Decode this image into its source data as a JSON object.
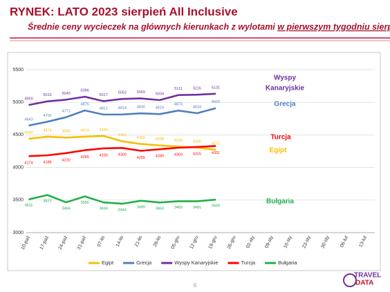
{
  "title": "RYNEK: LATO 2023 sierpień All Inclusive",
  "subtitle": "Średnie ceny wycieczek na głównych kierunkach z wylotami ",
  "subtitle_underlined": "w pierwszym tygodniu sierpnia",
  "page_number": "6",
  "logo": [
    "TRAVEL",
    "DATA"
  ],
  "chart_data": {
    "type": "line",
    "categories": [
      "10-paź",
      "17-paź",
      "24-paź",
      "31-paź",
      "07-lis",
      "14-lis",
      "21-lis",
      "28-lis",
      "05-gru",
      "12-gru",
      "19-gru",
      "26-gru",
      "02-sty",
      "09-sty",
      "16-sty",
      "23-sty",
      "30-sty",
      "06-lut",
      "13-lut"
    ],
    "series": [
      {
        "name": "Egipt",
        "color": "#f5c000",
        "values": [
          4440,
          4474,
          4459,
          4474,
          4484,
          4401,
          4360,
          4338,
          4320,
          4305,
          4271,
          null,
          null,
          null,
          null,
          null,
          null,
          null,
          null
        ]
      },
      {
        "name": "Grecja",
        "color": "#4f7fbf",
        "values": [
          4643,
          4702,
          4771,
          4875,
          4811,
          4814,
          4830,
          4819,
          4873,
          4833,
          4910,
          null,
          null,
          null,
          null,
          null,
          null,
          null,
          null
        ]
      },
      {
        "name": "Wyspy Kanaryjskie",
        "color": "#7030a0",
        "values": [
          4959,
          5015,
          5040,
          5086,
          5017,
          5052,
          5059,
          5034,
          5111,
          5116,
          5131,
          null,
          null,
          null,
          null,
          null,
          null,
          null,
          null
        ]
      },
      {
        "name": "Turcja",
        "color": "#ff0000",
        "values": [
          4174,
          4186,
          4220,
          4265,
          4293,
          4300,
          4255,
          4280,
          4303,
          4315,
          4331,
          null,
          null,
          null,
          null,
          null,
          null,
          null,
          null
        ]
      },
      {
        "name": "Bułgaria",
        "color": "#1fb04a",
        "values": [
          3511,
          3577,
          3465,
          3556,
          3464,
          3444,
          3489,
          3463,
          3482,
          3481,
          3506,
          null,
          null,
          null,
          null,
          null,
          null,
          null,
          null
        ]
      }
    ],
    "annotations": [
      "Wyspy",
      "Kanaryjskie",
      "Grecja",
      "Turcja",
      "Egipt",
      "Bułgaria"
    ],
    "ylim": [
      3000,
      5500
    ],
    "yticks": [
      3000,
      3500,
      4000,
      4500,
      5000,
      5500
    ],
    "grid": true,
    "legend": "bottom"
  }
}
